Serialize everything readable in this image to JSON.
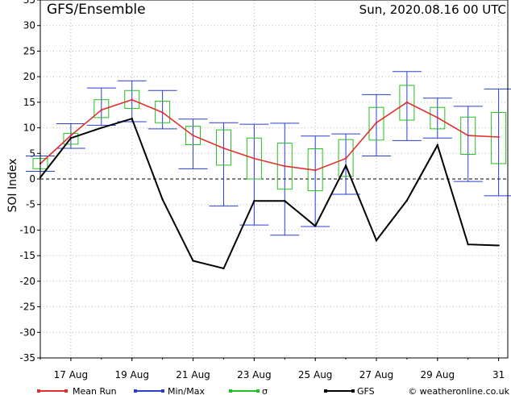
{
  "header": {
    "title": "GFS/Ensemble",
    "run_time": "Sun, 2020.08.16   00 UTC"
  },
  "chart_data": {
    "type": "line",
    "ylabel": "SOI Index",
    "ylim": [
      -35,
      35
    ],
    "yticks": [
      35,
      30,
      25,
      20,
      15,
      10,
      5,
      0,
      -5,
      -10,
      -15,
      -20,
      -25,
      -30,
      -35
    ],
    "x_tick_labels": [
      "17 Aug",
      "19 Aug",
      "21 Aug",
      "23 Aug",
      "25 Aug",
      "27 Aug",
      "29 Aug",
      "31"
    ],
    "x_tick_days": [
      17,
      19,
      21,
      23,
      25,
      27,
      29,
      31
    ],
    "xlim": [
      16,
      31.3
    ],
    "grid": true,
    "series": [
      {
        "name": "Mean Run",
        "color": "#e03030",
        "x": [
          16,
          17,
          18,
          19,
          20,
          21,
          22,
          23,
          24,
          25,
          26,
          27,
          28,
          29,
          30,
          31
        ],
        "values": [
          3,
          8.5,
          13.5,
          15.5,
          13,
          8.5,
          6,
          4,
          2.5,
          1.7,
          4,
          11,
          15,
          12,
          8.5,
          8.2
        ]
      },
      {
        "name": "GFS",
        "color": "#000000",
        "x": [
          16,
          17,
          18,
          19,
          20,
          21,
          22,
          23,
          24,
          25,
          26,
          27,
          28,
          29,
          30,
          31
        ],
        "values": [
          0.3,
          8,
          10,
          11.8,
          -4,
          -16,
          -17.5,
          -4.3,
          -4.3,
          -9.2,
          2.6,
          -12,
          -4.2,
          6.6,
          -12.8,
          -13
        ]
      }
    ],
    "min_max": {
      "name": "Min/Max",
      "color": "#2a3fd0",
      "x": [
        16,
        17,
        18,
        19,
        20,
        21,
        22,
        23,
        24,
        25,
        26,
        27,
        28,
        29,
        30,
        31
      ],
      "min": [
        1.5,
        6,
        10.5,
        11.2,
        9.8,
        2,
        -5.3,
        -9,
        -11,
        -9.3,
        -3,
        4.5,
        7.5,
        8,
        -0.5,
        -3.3
      ],
      "max": [
        4.5,
        10.8,
        17.8,
        19.2,
        17.3,
        11.7,
        11,
        10.7,
        10.9,
        8.4,
        8.8,
        16.5,
        21,
        15.8,
        14.2,
        17.6
      ]
    },
    "sigma": {
      "name": "σ",
      "color": "#22c022",
      "x": [
        16,
        17,
        18,
        19,
        20,
        21,
        22,
        23,
        24,
        25,
        26,
        27,
        28,
        29,
        30,
        31
      ],
      "low": [
        2,
        6.8,
        12,
        13.8,
        11,
        6.7,
        2.7,
        0,
        -2,
        -2.3,
        0.5,
        7.6,
        11.5,
        9.8,
        4.8,
        3
      ],
      "high": [
        4,
        8.9,
        15.5,
        17.3,
        15.2,
        10.3,
        9.6,
        8,
        7,
        5.9,
        7.7,
        14,
        18.3,
        14,
        12.1,
        13
      ]
    }
  },
  "legend": {
    "items": [
      {
        "label": "Mean Run",
        "color": "#e03030"
      },
      {
        "label": "Min/Max",
        "color": "#2a3fd0"
      },
      {
        "label": "σ",
        "color": "#22c022"
      },
      {
        "label": "GFS",
        "color": "#000000"
      }
    ],
    "credit": "© weatheronline.co.uk"
  }
}
